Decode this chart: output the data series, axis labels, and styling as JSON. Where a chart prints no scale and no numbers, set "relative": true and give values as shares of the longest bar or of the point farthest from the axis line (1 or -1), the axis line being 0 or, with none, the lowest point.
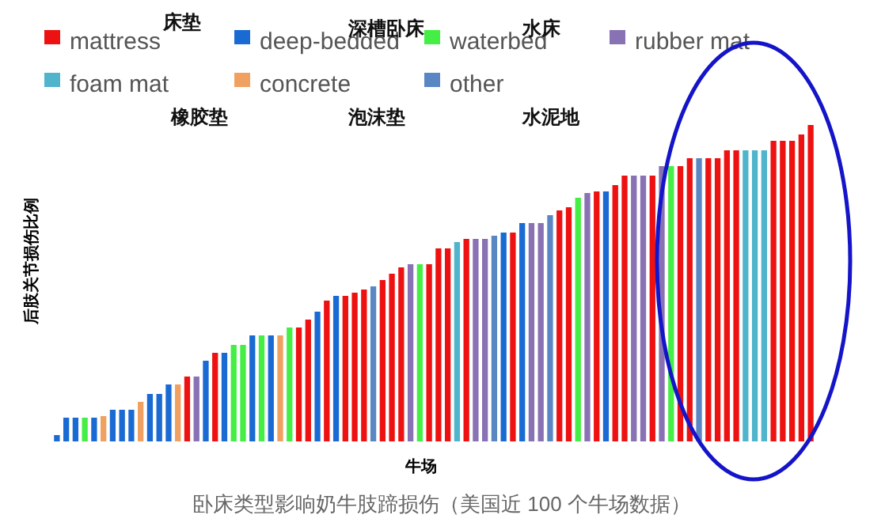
{
  "chart_data": {
    "type": "bar",
    "relative": true,
    "stacked": true,
    "xlabel": "牛场",
    "ylabel": "后肢关节损伤比例",
    "legend": "top",
    "annotations": [
      "床垫",
      "深槽卧床",
      "水床",
      "橡胶垫",
      "泡沫垫",
      "水泥地",
      "卧床类型影响奶牛肢蹄损伤（美国近 100 个牛场数据）"
    ],
    "categories": [
      null,
      null,
      null,
      null,
      null,
      null,
      null,
      null,
      null,
      null,
      null,
      null,
      null,
      null,
      null,
      null,
      null,
      null,
      null,
      null,
      null,
      null,
      null,
      null,
      null,
      null,
      null,
      null,
      null,
      null,
      null,
      null,
      null,
      null,
      null,
      null,
      null,
      null,
      null,
      null,
      null,
      null,
      null,
      null,
      null,
      null,
      null,
      null,
      null,
      null,
      null,
      null,
      null,
      null,
      null,
      null,
      null,
      null,
      null,
      null,
      null,
      null,
      null,
      null,
      null,
      null,
      null,
      null,
      null,
      null,
      null,
      null,
      null,
      null,
      null,
      null,
      null,
      null,
      null,
      null,
      null,
      null
    ],
    "series": [
      {
        "name": "mattress",
        "color": "#ee1111",
        "values": [
          null,
          null,
          null,
          null,
          null,
          null,
          null,
          null,
          null,
          null,
          null,
          null,
          null,
          null,
          0.205,
          null,
          null,
          0.28,
          null,
          null,
          null,
          null,
          null,
          null,
          null,
          null,
          0.36,
          0.385,
          null,
          0.445,
          null,
          0.46,
          0.47,
          0.48,
          null,
          0.51,
          0.53,
          0.55,
          null,
          null,
          0.56,
          0.61,
          0.61,
          null,
          0.64,
          null,
          null,
          null,
          null,
          0.66,
          null,
          null,
          null,
          null,
          0.73,
          0.74,
          null,
          null,
          0.79,
          null,
          0.81,
          0.84,
          null,
          null,
          0.84,
          null,
          null,
          0.87,
          0.895,
          null,
          0.895,
          0.895,
          0.92,
          0.92,
          null,
          null,
          null,
          0.95,
          0.95,
          0.95,
          0.97,
          1
        ]
      },
      {
        "name": "deep-bedded",
        "color": "#1a6ad4",
        "values": [
          0.02,
          0.075,
          0.075,
          null,
          0.075,
          null,
          0.1,
          0.1,
          0.1,
          null,
          0.15,
          0.15,
          0.18,
          null,
          null,
          null,
          0.255,
          null,
          0.28,
          null,
          null,
          0.335,
          null,
          0.335,
          null,
          null,
          null,
          null,
          0.41,
          null,
          0.46,
          null,
          null,
          null,
          null,
          null,
          null,
          null,
          null,
          null,
          null,
          null,
          null,
          null,
          null,
          null,
          null,
          null,
          0.66,
          null,
          0.69,
          null,
          null,
          null,
          null,
          null,
          null,
          null,
          null,
          0.79,
          null,
          null,
          null,
          null,
          null,
          null,
          null,
          null,
          null,
          null,
          null,
          null,
          null,
          null,
          null,
          null,
          null,
          null,
          null,
          null,
          null,
          null
        ]
      },
      {
        "name": "waterbed",
        "color": "#44ee44",
        "values": [
          null,
          null,
          null,
          0.075,
          null,
          null,
          null,
          null,
          null,
          null,
          null,
          null,
          null,
          null,
          null,
          null,
          null,
          null,
          null,
          0.305,
          0.305,
          null,
          0.335,
          null,
          null,
          0.36,
          null,
          null,
          null,
          null,
          null,
          null,
          null,
          null,
          null,
          null,
          null,
          null,
          null,
          0.56,
          null,
          null,
          null,
          null,
          null,
          null,
          null,
          null,
          null,
          null,
          null,
          null,
          null,
          null,
          null,
          null,
          0.77,
          null,
          null,
          null,
          null,
          null,
          null,
          null,
          null,
          null,
          0.87,
          null,
          null,
          null,
          null,
          null,
          null,
          null,
          null,
          null,
          null,
          null,
          null,
          null,
          null,
          null
        ]
      },
      {
        "name": "rubber mat",
        "color": "#8872b4",
        "values": [
          null,
          null,
          null,
          null,
          null,
          null,
          null,
          null,
          null,
          null,
          null,
          null,
          null,
          null,
          null,
          0.205,
          null,
          null,
          null,
          null,
          null,
          null,
          null,
          null,
          null,
          null,
          null,
          null,
          null,
          null,
          null,
          null,
          null,
          null,
          null,
          null,
          null,
          null,
          0.56,
          null,
          null,
          null,
          null,
          null,
          null,
          0.64,
          0.64,
          null,
          null,
          null,
          null,
          0.69,
          0.69,
          null,
          null,
          null,
          null,
          0.785,
          null,
          null,
          null,
          null,
          0.84,
          0.84,
          null,
          0.87,
          null,
          null,
          null,
          null,
          null,
          null,
          null,
          null,
          null,
          null,
          null,
          null,
          null,
          null,
          null,
          null
        ]
      },
      {
        "name": "foam mat",
        "color": "#50b4cc",
        "values": [
          null,
          null,
          null,
          null,
          null,
          null,
          null,
          null,
          null,
          null,
          null,
          null,
          null,
          null,
          null,
          null,
          null,
          null,
          null,
          null,
          null,
          null,
          null,
          null,
          null,
          null,
          null,
          null,
          null,
          null,
          null,
          null,
          null,
          null,
          null,
          null,
          null,
          null,
          null,
          null,
          null,
          null,
          null,
          0.63,
          null,
          null,
          null,
          null,
          null,
          null,
          null,
          null,
          null,
          null,
          null,
          null,
          null,
          null,
          null,
          null,
          null,
          null,
          null,
          null,
          null,
          null,
          null,
          null,
          null,
          null,
          null,
          null,
          null,
          null,
          0.92,
          0.92,
          0.92,
          null,
          null,
          null,
          null,
          null
        ]
      },
      {
        "name": "concrete",
        "color": "#f0a060",
        "values": [
          null,
          null,
          null,
          null,
          null,
          0.08,
          null,
          null,
          null,
          0.125,
          null,
          null,
          null,
          0.18,
          null,
          null,
          null,
          null,
          null,
          null,
          null,
          null,
          null,
          null,
          0.335,
          null,
          null,
          null,
          null,
          null,
          null,
          null,
          null,
          null,
          null,
          null,
          null,
          null,
          null,
          null,
          null,
          null,
          null,
          null,
          null,
          null,
          null,
          null,
          null,
          null,
          null,
          null,
          null,
          null,
          null,
          null,
          null,
          null,
          null,
          null,
          null,
          null,
          null,
          null,
          null,
          null,
          null,
          null,
          null,
          null,
          null,
          null,
          null,
          null,
          null,
          null,
          null,
          null,
          null,
          null,
          null,
          null
        ]
      },
      {
        "name": "other",
        "color": "#5a86c4",
        "values": [
          null,
          null,
          null,
          null,
          null,
          null,
          null,
          null,
          null,
          null,
          null,
          null,
          null,
          null,
          null,
          null,
          null,
          null,
          null,
          null,
          null,
          null,
          null,
          null,
          null,
          null,
          null,
          null,
          null,
          null,
          null,
          null,
          null,
          null,
          0.49,
          null,
          null,
          null,
          null,
          null,
          null,
          null,
          null,
          null,
          null,
          null,
          null,
          0.65,
          null,
          null,
          null,
          null,
          null,
          0.715,
          null,
          null,
          null,
          null,
          null,
          null,
          null,
          null,
          null,
          null,
          null,
          null,
          null,
          null,
          null,
          0.895,
          null,
          null,
          null,
          null,
          null,
          null,
          null,
          null,
          null,
          null,
          null,
          null
        ]
      }
    ]
  }
}
